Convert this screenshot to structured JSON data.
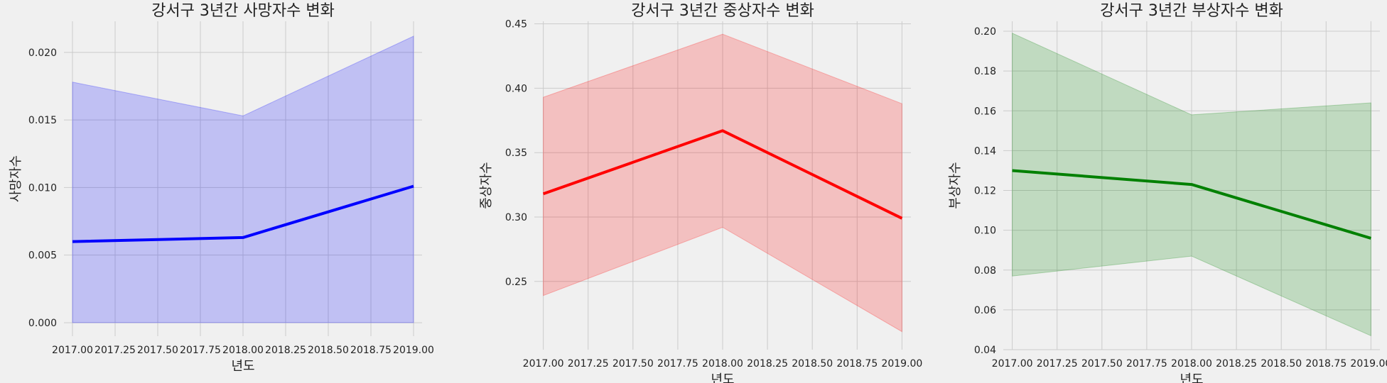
{
  "figure": {
    "background": "#f0f0f0",
    "grid_color": "#cbcbcb"
  },
  "chart_data": [
    {
      "type": "line",
      "title": "강서구 3년간 사망자수 변화",
      "xlabel": "년도",
      "ylabel": "사망자수",
      "x": [
        2017,
        2018,
        2019
      ],
      "series": [
        {
          "values": [
            0.006,
            0.0063,
            0.0101
          ],
          "ci_low": [
            0.0,
            0.0,
            0.0
          ],
          "ci_high": [
            0.0178,
            0.0153,
            0.0212
          ],
          "color": "#0000ff"
        }
      ],
      "xlim": [
        2016.95,
        2019.05
      ],
      "ylim": [
        -0.001,
        0.0223
      ],
      "xticks": [
        2017.0,
        2017.25,
        2017.5,
        2017.75,
        2018.0,
        2018.25,
        2018.5,
        2018.75,
        2019.0
      ],
      "xtick_labels": [
        "2017.00",
        "2017.25",
        "2017.50",
        "2017.75",
        "2018.00",
        "2018.25",
        "2018.50",
        "2018.75",
        "2019.00"
      ],
      "yticks": [
        0.0,
        0.005,
        0.01,
        0.015,
        0.02
      ],
      "ytick_labels": [
        "0.000",
        "0.005",
        "0.010",
        "0.015",
        "0.020"
      ],
      "grid": true
    },
    {
      "type": "line",
      "title": "강서구 3년간 중상자수 변화",
      "xlabel": "년도",
      "ylabel": "중상자수",
      "x": [
        2017,
        2018,
        2019
      ],
      "series": [
        {
          "values": [
            0.318,
            0.367,
            0.299
          ],
          "ci_low": [
            0.239,
            0.292,
            0.211
          ],
          "ci_high": [
            0.393,
            0.442,
            0.388
          ],
          "color": "#ff0000"
        }
      ],
      "xlim": [
        2016.95,
        2019.05
      ],
      "ylim": [
        0.197,
        0.452
      ],
      "xticks": [
        2017.0,
        2017.25,
        2017.5,
        2017.75,
        2018.0,
        2018.25,
        2018.5,
        2018.75,
        2019.0
      ],
      "xtick_labels": [
        "2017.00",
        "2017.25",
        "2017.50",
        "2017.75",
        "2018.00",
        "2018.25",
        "2018.50",
        "2018.75",
        "2019.00"
      ],
      "yticks": [
        0.25,
        0.3,
        0.35,
        0.4,
        0.45
      ],
      "ytick_labels": [
        "0.25",
        "0.30",
        "0.35",
        "0.40",
        "0.45"
      ],
      "grid": true
    },
    {
      "type": "line",
      "title": "강서구 3년간 부상자수 변화",
      "xlabel": "년도",
      "ylabel": "부상자수",
      "x": [
        2017,
        2018,
        2019
      ],
      "series": [
        {
          "values": [
            0.13,
            0.123,
            0.096
          ],
          "ci_low": [
            0.077,
            0.087,
            0.047
          ],
          "ci_high": [
            0.199,
            0.158,
            0.164
          ],
          "color": "#008000"
        }
      ],
      "xlim": [
        2016.95,
        2019.05
      ],
      "ylim": [
        0.04,
        0.205
      ],
      "xticks": [
        2017.0,
        2017.25,
        2017.5,
        2017.75,
        2018.0,
        2018.25,
        2018.5,
        2018.75,
        2019.0
      ],
      "xtick_labels": [
        "2017.00",
        "2017.25",
        "2017.50",
        "2017.75",
        "2018.00",
        "2018.25",
        "2018.50",
        "2018.75",
        "2019.00"
      ],
      "yticks": [
        0.04,
        0.06,
        0.08,
        0.1,
        0.12,
        0.14,
        0.16,
        0.18,
        0.2
      ],
      "ytick_labels": [
        "0.04",
        "0.06",
        "0.08",
        "0.10",
        "0.12",
        "0.14",
        "0.16",
        "0.18",
        "0.20"
      ],
      "grid": true
    }
  ]
}
